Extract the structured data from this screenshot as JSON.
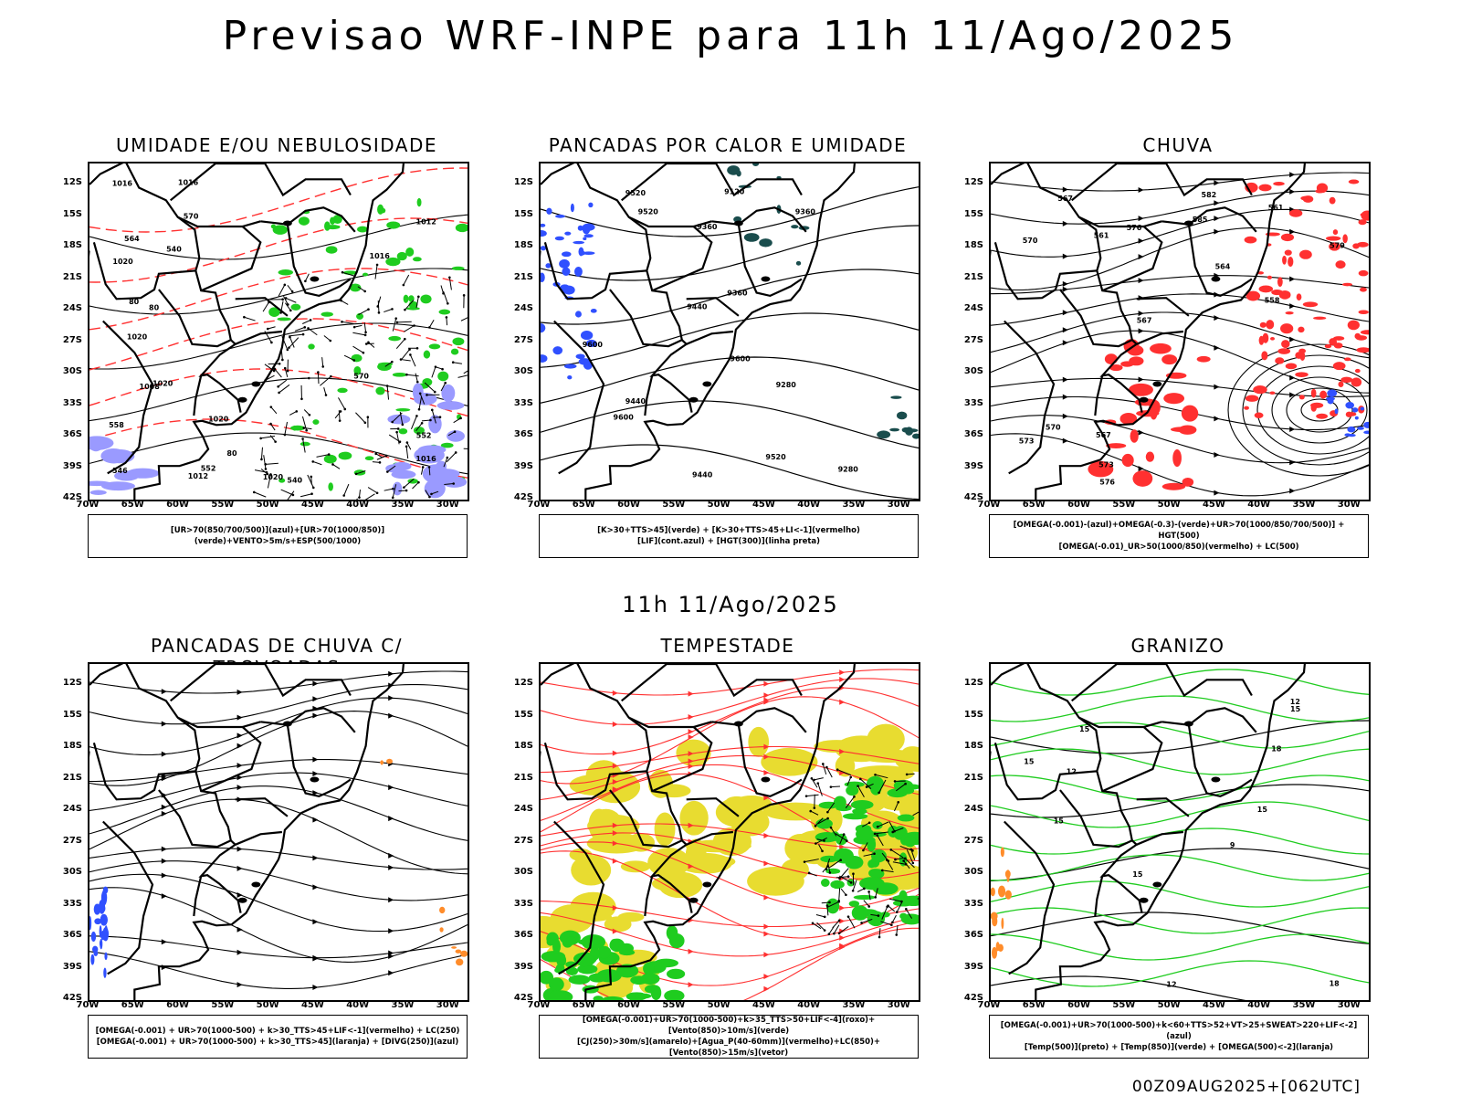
{
  "page": {
    "title": "Previsao WRF-INPE  para 11h 11/Ago/2025",
    "mid_title": "11h 11/Ago/2025",
    "footer": "00Z09AUG2025+[062UTC]"
  },
  "colors": {
    "contour": "#000000",
    "green": "#1fcc1f",
    "red": "#ff3030",
    "blue": "#3050ff",
    "yellow": "#e8dc30",
    "orange": "#ff8c2a",
    "lavender": "#9a9aff",
    "teal": "#1a4d4d"
  },
  "axes": {
    "y_ticks": [
      "12S",
      "15S",
      "18S",
      "21S",
      "24S",
      "27S",
      "30S",
      "33S",
      "36S",
      "39S",
      "42S"
    ],
    "x_ticks": [
      "70W",
      "65W",
      "60W",
      "55W",
      "50W",
      "45W",
      "40W",
      "35W",
      "30W"
    ],
    "lat_range": [
      -42,
      -10
    ],
    "lon_range": [
      -70,
      -28
    ]
  },
  "chart_data": [
    {
      "type": "map",
      "title": "UMIDADE E/OU NEBULOSIDADE",
      "legend": [
        "[UR>70(850/700/500)](azul)+[UR>70(1000/850)](verde)+VENTO>5m/s+ESP(500/1000)"
      ],
      "contour_labels": [
        "1016",
        "1020",
        "1016",
        "1020",
        "1020",
        "1016",
        "1012",
        "1008",
        "1016",
        "1012",
        "1020",
        "1020",
        "570",
        "570",
        "564",
        "558",
        "552",
        "552",
        "546",
        "540",
        "540",
        "80",
        "80",
        "80"
      ]
    },
    {
      "type": "map",
      "title": "PANCADAS POR CALOR E UMIDADE",
      "legend": [
        "[K>30+TTS>45](verde)  +  [K>30+TTS>45+LI<-1](vermelho)",
        "[LIF](cont.azul)  +  [HGT(300)](linha preta)"
      ],
      "contour_labels": [
        "9600",
        "9520",
        "9600",
        "9600",
        "9520",
        "9520",
        "9440",
        "9440",
        "9440",
        "9360",
        "9360",
        "9280",
        "9360",
        "9280",
        "9120"
      ]
    },
    {
      "type": "map",
      "title": "CHUVA",
      "legend": [
        "[OMEGA(-0.001)-(azul)+OMEGA(-0.3)-(verde)+UR>70(1000/850/700/500)] + HGT(500)",
        "[OMEGA(-0.01)_UR>50(1000/850)(vermelho) + LC(500)"
      ],
      "contour_labels": [
        "585",
        "582",
        "579",
        "576",
        "573",
        "570",
        "567",
        "567",
        "564",
        "561",
        "576",
        "570",
        "573",
        "567",
        "561",
        "558"
      ]
    },
    {
      "type": "map",
      "title": "PANCADAS DE CHUVA C/ TROVOADAS",
      "legend": [
        "[OMEGA(-0.001) + UR>70(1000-500) + k>30_TTS>45+LIF<-1](vermelho) + LC(250)",
        "[OMEGA(-0.001) + UR>70(1000-500) + k>30_TTS>45](laranja) + [DIVG(250)](azul)"
      ],
      "contour_labels": []
    },
    {
      "type": "map",
      "title": "TEMPESTADE",
      "legend": [
        "[OMEGA(-0.001)+UR>70(1000-500)+k>35_TTS>50+LIF<-4](roxo)+[Vento(850)>10m/s](verde)",
        "[CJ(250)>30m/s](amarelo)+[Agua_P(40-60mm)](vermelho)+LC(850)+[Vento(850)>15m/s](vetor)"
      ],
      "contour_labels": []
    },
    {
      "type": "map",
      "title": "GRANIZO",
      "legend": [
        "[OMEGA(-0.001)+UR>70(1000-500)+k<60+TTS>52+VT>25+SWEAT>220+LIF<-2](azul)",
        "[Temp(500)](preto) + [Temp(850)](verde) + [OMEGA(500)<-2](laranja)"
      ],
      "contour_labels": [
        "9",
        "12",
        "12",
        "12",
        "15",
        "15",
        "15",
        "18",
        "15",
        "15",
        "15",
        "18"
      ]
    }
  ]
}
